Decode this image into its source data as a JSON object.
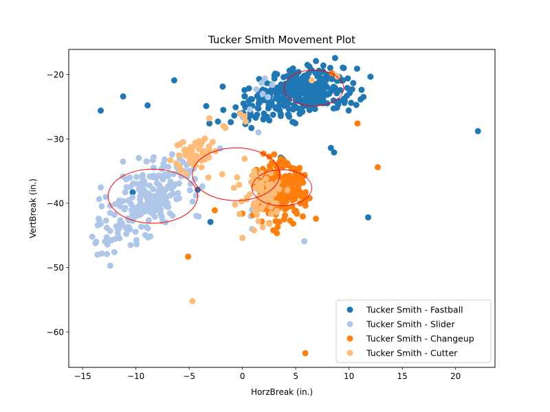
{
  "chart_data": {
    "type": "scatter",
    "title": "Tucker Smith Movement Plot",
    "xlabel": "HorzBreak (in.)",
    "ylabel": "VertBreak (in.)",
    "xlim": [
      -16.3,
      23.7
    ],
    "ylim": [
      -65.5,
      -16.1
    ],
    "xticks": [
      -15,
      -10,
      -5,
      0,
      5,
      10,
      15,
      20
    ],
    "xtick_labels": [
      "−15",
      "−10",
      "−5",
      "0",
      "5",
      "10",
      "15",
      "20"
    ],
    "yticks": [
      -20,
      -30,
      -40,
      -50,
      -60
    ],
    "ytick_labels": [
      "−20",
      "−30",
      "−40",
      "−50",
      "−60"
    ],
    "grid": false,
    "legend_position": "lower-right",
    "series": [
      {
        "name": "Tucker Smith - Fastball",
        "color": "#1f77b4",
        "centers": [
          {
            "x": 6.7,
            "y": -22.2,
            "sx": 2.0,
            "sy": 1.6,
            "n": 210
          },
          {
            "x": 2.5,
            "y": -24.5,
            "sx": 1.6,
            "sy": 1.6,
            "n": 110
          }
        ],
        "points": [
          [
            -13.3,
            -25.6
          ],
          [
            -11.2,
            -23.4
          ],
          [
            -8.9,
            -24.8
          ],
          [
            -6.4,
            -20.9
          ],
          [
            -3.4,
            -24.9
          ],
          [
            -1.8,
            -25.5
          ],
          [
            -2.3,
            -27.3
          ],
          [
            -3.1,
            -27.6
          ],
          [
            -1.1,
            -27.4
          ],
          [
            0.0,
            -26.0
          ],
          [
            0.1,
            -24.5
          ],
          [
            0.8,
            -23.8
          ],
          [
            5.1,
            -19.9
          ],
          [
            6.1,
            -18.5
          ],
          [
            6.9,
            -17.9
          ],
          [
            7.6,
            -18.6
          ],
          [
            9.1,
            -20.4
          ],
          [
            9.8,
            -23.3
          ],
          [
            10.2,
            -24.4
          ],
          [
            10.3,
            -22.3
          ],
          [
            8.3,
            -31.4
          ],
          [
            8.6,
            -32.1
          ],
          [
            4.8,
            -27.4
          ],
          [
            22.1,
            -28.8
          ],
          [
            11.8,
            -42.2
          ],
          [
            -3.0,
            -42.9
          ],
          [
            -4.2,
            -37.9
          ],
          [
            -10.3,
            -38.3
          ],
          [
            3.6,
            -32.9
          ],
          [
            3.8,
            -33.2
          ],
          [
            -7.6,
            -39.9
          ],
          [
            -9.0,
            -40.4
          ]
        ]
      },
      {
        "name": "Tucker Smith - Slider",
        "color": "#aec7e8",
        "centers": [
          {
            "x": -9.0,
            "y": -39.5,
            "sx": 1.8,
            "sy": 2.2,
            "n": 150
          },
          {
            "x": -11.5,
            "y": -44.0,
            "sx": 1.0,
            "sy": 1.6,
            "n": 45
          },
          {
            "x": -6.6,
            "y": -35.5,
            "sx": 1.2,
            "sy": 1.4,
            "n": 40
          }
        ],
        "points": [
          [
            -14.1,
            -45.2
          ],
          [
            -13.8,
            -46.2
          ],
          [
            -13.6,
            -48.0
          ],
          [
            -13.2,
            -47.8
          ],
          [
            -12.4,
            -49.7
          ],
          [
            -13.3,
            -43.2
          ],
          [
            -12.8,
            -42.7
          ],
          [
            -10.5,
            -46.5
          ],
          [
            -9.0,
            -33.5
          ],
          [
            -7.3,
            -33.2
          ],
          [
            -6.6,
            -32.4
          ],
          [
            -5.9,
            -33.0
          ],
          [
            1.3,
            -22.3
          ],
          [
            1.8,
            -21.3
          ],
          [
            2.1,
            -20.6
          ],
          [
            2.8,
            -21.6
          ],
          [
            1.9,
            -23.0
          ],
          [
            2.4,
            -23.5
          ],
          [
            0.7,
            -25.4
          ],
          [
            0.0,
            -26.6
          ],
          [
            -2.1,
            -31.5
          ],
          [
            1.5,
            -29.0
          ],
          [
            5.8,
            -45.9
          ],
          [
            0.9,
            -41.0
          ],
          [
            0.9,
            -44.0
          ],
          [
            0.8,
            -42.0
          ]
        ]
      },
      {
        "name": "Tucker Smith - Changeup",
        "color": "#ff7f0e",
        "centers": [
          {
            "x": 3.6,
            "y": -38.0,
            "sx": 1.1,
            "sy": 2.0,
            "n": 220
          }
        ],
        "points": [
          [
            5.9,
            -63.3
          ],
          [
            -5.1,
            -48.3
          ],
          [
            -2.6,
            -41.1
          ],
          [
            0.0,
            -41.6
          ],
          [
            1.0,
            -41.8
          ],
          [
            6.9,
            -42.4
          ],
          [
            3.9,
            -42.5
          ],
          [
            12.7,
            -34.4
          ],
          [
            10.8,
            -27.6
          ],
          [
            8.4,
            -19.8
          ],
          [
            1.3,
            -34.8
          ],
          [
            1.6,
            -36.4
          ],
          [
            3.6,
            -33.1
          ],
          [
            3.9,
            -33.4
          ],
          [
            5.3,
            -34.7
          ],
          [
            5.6,
            -36.1
          ],
          [
            5.7,
            -36.8
          ],
          [
            6.3,
            -39.2
          ],
          [
            5.8,
            -38.9
          ],
          [
            5.9,
            -39.7
          ],
          [
            1.8,
            -39.5
          ],
          [
            1.6,
            -40.1
          ],
          [
            2.0,
            -40.9
          ],
          [
            2.5,
            -41.3
          ],
          [
            3.3,
            -43.7
          ],
          [
            2.9,
            -44.2
          ],
          [
            4.6,
            -34.6
          ],
          [
            4.3,
            -34.1
          ],
          [
            2.2,
            -37.0
          ],
          [
            1.8,
            -38.1
          ]
        ]
      },
      {
        "name": "Tucker Smith - Cutter",
        "color": "#ffbb78",
        "centers": [
          {
            "x": 2.1,
            "y": -38.5,
            "sx": 1.0,
            "sy": 1.8,
            "n": 60
          },
          {
            "x": -4.2,
            "y": -32.0,
            "sx": 1.0,
            "sy": 1.2,
            "n": 45
          }
        ],
        "points": [
          [
            -4.7,
            -55.2
          ],
          [
            0.0,
            -45.4
          ],
          [
            -0.1,
            -39.7
          ],
          [
            -0.7,
            -40.2
          ],
          [
            -0.8,
            -37.6
          ],
          [
            -0.5,
            -36.0
          ],
          [
            -1.9,
            -35.5
          ],
          [
            -3.2,
            -36.0
          ],
          [
            -3.5,
            -33.2
          ],
          [
            -3.1,
            -31.8
          ],
          [
            -2.8,
            -30.5
          ],
          [
            -3.1,
            -26.8
          ],
          [
            -1.6,
            -28.3
          ],
          [
            -1.8,
            -28.0
          ],
          [
            -4.8,
            -33.8
          ],
          [
            -5.0,
            -32.4
          ],
          [
            -5.8,
            -34.9
          ],
          [
            -5.3,
            -35.4
          ],
          [
            -6.2,
            -33.8
          ],
          [
            -5.9,
            -34.3
          ],
          [
            1.1,
            -44.2
          ],
          [
            1.9,
            -43.7
          ],
          [
            1.5,
            -42.8
          ],
          [
            1.2,
            -41.3
          ],
          [
            0.4,
            -39.4
          ],
          [
            0.7,
            -38.6
          ],
          [
            0.9,
            -35.7
          ],
          [
            0.2,
            -33.1
          ],
          [
            0.3,
            -27.3
          ],
          [
            0.2,
            -26.5
          ],
          [
            -0.2,
            -26.1
          ],
          [
            6.5,
            -20.9
          ],
          [
            8.9,
            -20.3
          ]
        ]
      }
    ],
    "ellipses": [
      {
        "label": "fastball",
        "cx": 6.7,
        "cy": -22.1,
        "rx": 2.8,
        "ry": 2.8,
        "color": "#ff0000"
      },
      {
        "label": "slider",
        "cx": -8.4,
        "cy": -38.9,
        "rx": 4.2,
        "ry": 4.2,
        "color": "#ff0000"
      },
      {
        "label": "changeup",
        "cx": 3.7,
        "cy": -37.6,
        "rx": 2.8,
        "ry": 2.8,
        "color": "#ff0000"
      },
      {
        "label": "cutter",
        "cx": -0.6,
        "cy": -35.5,
        "rx": 4.1,
        "ry": 4.1,
        "color": "#ff0000"
      }
    ]
  }
}
